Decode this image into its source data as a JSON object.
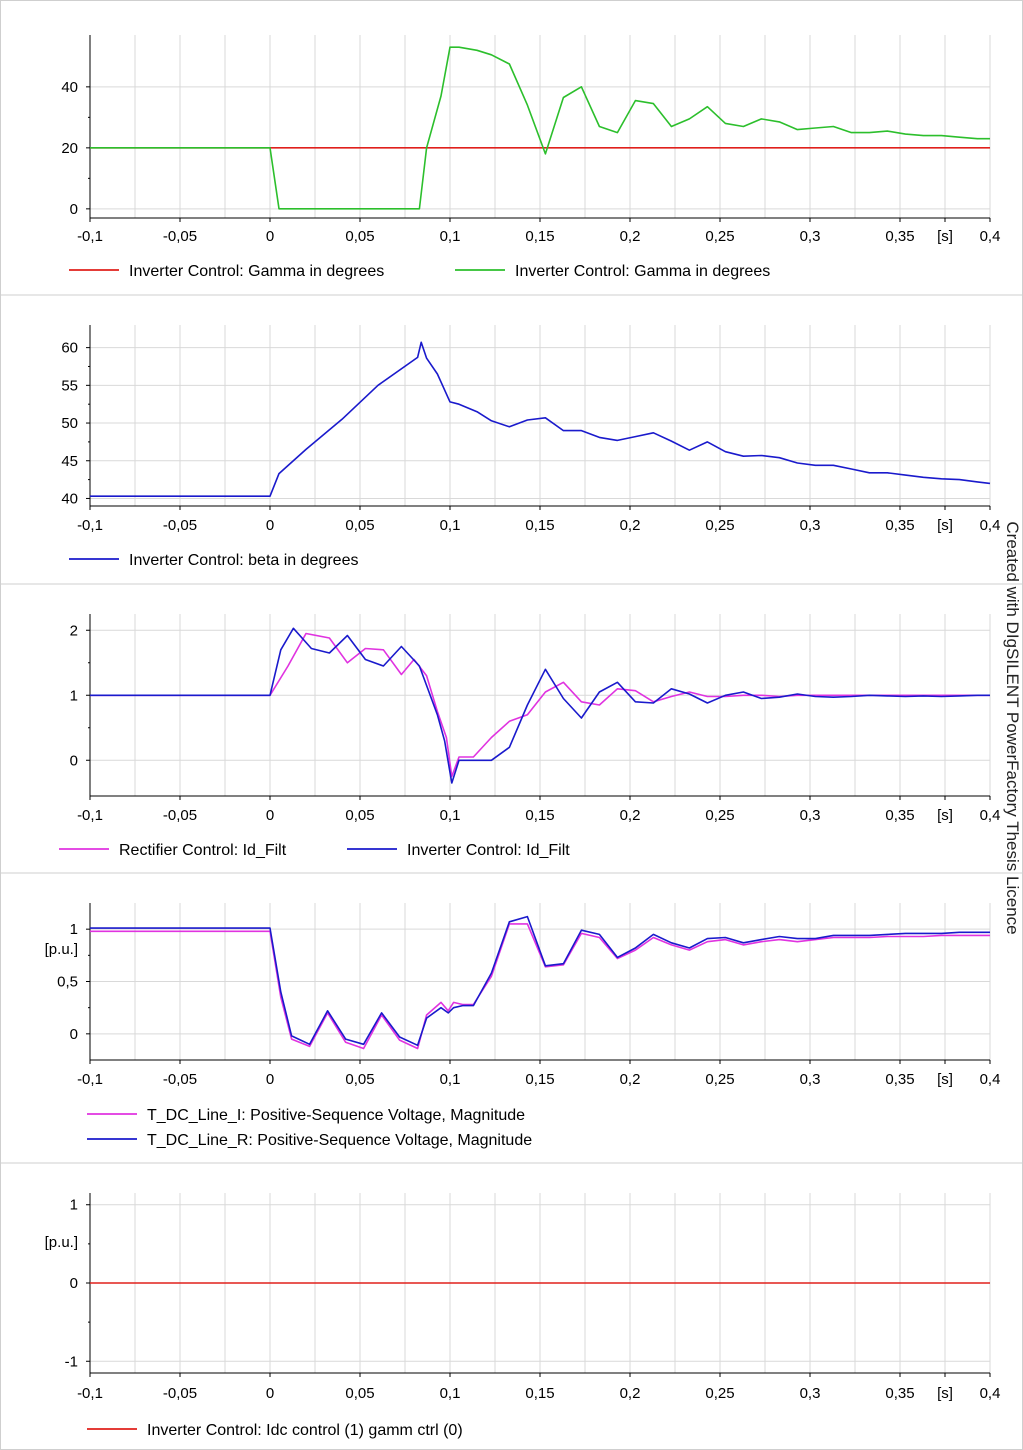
{
  "watermark": "Created with DIgSILENT PowerFactory Thesis Licence",
  "chart_data": [
    {
      "type": "line",
      "x_tick_labels": [
        "-0,1",
        "-0,05",
        "0",
        "0,05",
        "0,1",
        "0,15",
        "0,2",
        "0,25",
        "0,3",
        "0,35",
        "[s]",
        "0,4"
      ],
      "xlim": [
        -0.1,
        0.4
      ],
      "ylim": [
        -3,
        57
      ],
      "y_ticks": [
        0,
        20,
        40
      ],
      "y_tick_labels": [
        "0",
        "20",
        "40"
      ],
      "ylabel": "",
      "grid": true,
      "legend_placement": "bottom",
      "series": [
        {
          "name": "Inverter Control: Gamma in degrees",
          "color": "#e0201c",
          "x": [
            -0.1,
            0.4
          ],
          "y": [
            20,
            20
          ]
        },
        {
          "name": "Inverter Control: Gamma in degrees",
          "color": "#2cbf2c",
          "x": [
            -0.1,
            0.0,
            0.005,
            0.083,
            0.087,
            0.095,
            0.1,
            0.105,
            0.115,
            0.123,
            0.133,
            0.143,
            0.153,
            0.163,
            0.173,
            0.183,
            0.193,
            0.203,
            0.213,
            0.223,
            0.233,
            0.243,
            0.253,
            0.263,
            0.273,
            0.283,
            0.293,
            0.303,
            0.313,
            0.323,
            0.333,
            0.343,
            0.353,
            0.363,
            0.373,
            0.383,
            0.393,
            0.4
          ],
          "y": [
            20,
            20,
            0,
            0,
            20,
            37,
            53,
            53,
            52,
            50.5,
            47.5,
            34,
            18,
            36.5,
            40,
            27,
            25,
            35.5,
            34.5,
            27,
            29.5,
            33.5,
            28,
            27,
            29.5,
            28.5,
            26,
            26.5,
            27,
            25,
            25,
            25.5,
            24.5,
            24,
            24,
            23.5,
            23,
            23
          ]
        }
      ]
    },
    {
      "type": "line",
      "x_tick_labels": [
        "-0,1",
        "-0,05",
        "0",
        "0,05",
        "0,1",
        "0,15",
        "0,2",
        "0,25",
        "0,3",
        "0,35",
        "[s]",
        "0,4"
      ],
      "xlim": [
        -0.1,
        0.4
      ],
      "ylim": [
        39,
        63
      ],
      "y_ticks": [
        40,
        45,
        50,
        55,
        60
      ],
      "y_tick_labels": [
        "40",
        "45",
        "50",
        "55",
        "60"
      ],
      "ylabel": "",
      "grid": true,
      "legend_placement": "bottom",
      "series": [
        {
          "name": "Inverter Control: beta in degrees",
          "color": "#1a1acc",
          "x": [
            -0.1,
            0.0,
            0.005,
            0.02,
            0.04,
            0.06,
            0.082,
            0.084,
            0.087,
            0.093,
            0.1,
            0.105,
            0.115,
            0.123,
            0.133,
            0.143,
            0.153,
            0.163,
            0.173,
            0.183,
            0.193,
            0.203,
            0.213,
            0.223,
            0.233,
            0.243,
            0.253,
            0.263,
            0.273,
            0.283,
            0.293,
            0.303,
            0.313,
            0.323,
            0.333,
            0.343,
            0.353,
            0.363,
            0.373,
            0.383,
            0.393,
            0.4
          ],
          "y": [
            40.3,
            40.3,
            43.3,
            46.5,
            50.5,
            55,
            58.7,
            60.7,
            58.6,
            56.5,
            52.8,
            52.5,
            51.5,
            50.3,
            49.5,
            50.4,
            50.7,
            49,
            49,
            48.1,
            47.7,
            48.2,
            48.7,
            47.6,
            46.4,
            47.5,
            46.2,
            45.6,
            45.7,
            45.4,
            44.7,
            44.4,
            44.4,
            43.9,
            43.4,
            43.4,
            43.1,
            42.8,
            42.6,
            42.5,
            42.2,
            42
          ]
        }
      ]
    },
    {
      "type": "line",
      "x_tick_labels": [
        "-0,1",
        "-0,05",
        "0",
        "0,05",
        "0,1",
        "0,15",
        "0,2",
        "0,25",
        "0,3",
        "0,35",
        "[s]",
        "0,4"
      ],
      "xlim": [
        -0.1,
        0.4
      ],
      "ylim": [
        -0.55,
        2.25
      ],
      "y_ticks": [
        0,
        1,
        2
      ],
      "y_tick_labels": [
        "0",
        "1",
        "2"
      ],
      "ylabel": "",
      "grid": true,
      "legend_placement": "bottom",
      "series": [
        {
          "name": "Rectifier Control: Id_Filt",
          "color": "#e033e0",
          "x": [
            -0.1,
            0.0,
            0.01,
            0.02,
            0.033,
            0.043,
            0.053,
            0.063,
            0.073,
            0.08,
            0.087,
            0.093,
            0.098,
            0.101,
            0.105,
            0.113,
            0.123,
            0.133,
            0.143,
            0.153,
            0.163,
            0.173,
            0.183,
            0.193,
            0.203,
            0.213,
            0.223,
            0.233,
            0.243,
            0.253,
            0.263,
            0.273,
            0.283,
            0.293,
            0.303,
            0.313,
            0.323,
            0.333,
            0.343,
            0.353,
            0.363,
            0.373,
            0.383,
            0.393,
            0.4
          ],
          "y": [
            1,
            1,
            1.45,
            1.95,
            1.88,
            1.5,
            1.72,
            1.7,
            1.32,
            1.55,
            1.3,
            0.75,
            0.35,
            -0.25,
            0.05,
            0.05,
            0.35,
            0.6,
            0.7,
            1.05,
            1.2,
            0.9,
            0.85,
            1.1,
            1.07,
            0.9,
            0.98,
            1.05,
            0.98,
            0.98,
            1,
            1,
            0.98,
            1,
            1,
            1,
            1,
            1,
            1,
            1,
            1,
            1,
            1,
            1,
            1
          ]
        },
        {
          "name": "Inverter Control: Id_Filt",
          "color": "#1a1acc",
          "x": [
            -0.1,
            0.0,
            0.006,
            0.013,
            0.023,
            0.033,
            0.043,
            0.053,
            0.063,
            0.073,
            0.083,
            0.093,
            0.097,
            0.101,
            0.105,
            0.113,
            0.123,
            0.133,
            0.143,
            0.153,
            0.163,
            0.173,
            0.183,
            0.193,
            0.203,
            0.213,
            0.223,
            0.233,
            0.243,
            0.253,
            0.263,
            0.273,
            0.283,
            0.293,
            0.303,
            0.313,
            0.323,
            0.333,
            0.343,
            0.353,
            0.363,
            0.373,
            0.383,
            0.393,
            0.4
          ],
          "y": [
            1,
            1,
            1.7,
            2.03,
            1.72,
            1.65,
            1.92,
            1.55,
            1.45,
            1.75,
            1.45,
            0.7,
            0.3,
            -0.35,
            0,
            0,
            0,
            0.2,
            0.85,
            1.4,
            0.95,
            0.65,
            1.05,
            1.2,
            0.9,
            0.88,
            1.1,
            1.02,
            0.88,
            1,
            1.05,
            0.95,
            0.97,
            1.02,
            0.98,
            0.97,
            0.98,
            1,
            0.99,
            0.98,
            0.99,
            0.98,
            0.99,
            1,
            1
          ]
        }
      ]
    },
    {
      "type": "line",
      "x_tick_labels": [
        "-0,1",
        "-0,05",
        "0",
        "0,05",
        "0,1",
        "0,15",
        "0,2",
        "0,25",
        "0,3",
        "0,35",
        "[s]",
        "0,4"
      ],
      "xlim": [
        -0.1,
        0.4
      ],
      "ylim": [
        -0.25,
        1.25
      ],
      "y_ticks": [
        0,
        0.5,
        1
      ],
      "y_tick_labels": [
        "0",
        "0,5",
        "1"
      ],
      "ylabel": "[p.u.]",
      "grid": true,
      "legend_placement": "bottom",
      "series": [
        {
          "name": "T_DC_Line_I: Positive-Sequence Voltage, Magnitude",
          "color": "#e033e0",
          "x": [
            -0.1,
            0.0,
            0.006,
            0.012,
            0.022,
            0.032,
            0.042,
            0.052,
            0.062,
            0.072,
            0.082,
            0.087,
            0.095,
            0.099,
            0.102,
            0.107,
            0.113,
            0.123,
            0.133,
            0.143,
            0.153,
            0.163,
            0.173,
            0.183,
            0.193,
            0.203,
            0.213,
            0.223,
            0.233,
            0.243,
            0.253,
            0.263,
            0.273,
            0.283,
            0.293,
            0.303,
            0.313,
            0.323,
            0.333,
            0.343,
            0.353,
            0.363,
            0.373,
            0.383,
            0.393,
            0.4
          ],
          "y": [
            0.98,
            0.98,
            0.35,
            -0.05,
            -0.12,
            0.2,
            -0.08,
            -0.14,
            0.18,
            -0.06,
            -0.14,
            0.18,
            0.3,
            0.22,
            0.3,
            0.28,
            0.28,
            0.55,
            1.05,
            1.05,
            0.64,
            0.66,
            0.96,
            0.92,
            0.72,
            0.8,
            0.92,
            0.85,
            0.8,
            0.88,
            0.9,
            0.85,
            0.88,
            0.9,
            0.88,
            0.9,
            0.92,
            0.92,
            0.92,
            0.93,
            0.93,
            0.93,
            0.94,
            0.94,
            0.94,
            0.94
          ]
        },
        {
          "name": "T_DC_Line_R: Positive-Sequence Voltage, Magnitude",
          "color": "#1a1acc",
          "x": [
            -0.1,
            0.0,
            0.006,
            0.012,
            0.022,
            0.032,
            0.042,
            0.052,
            0.062,
            0.072,
            0.082,
            0.087,
            0.095,
            0.099,
            0.102,
            0.107,
            0.113,
            0.123,
            0.133,
            0.143,
            0.153,
            0.163,
            0.173,
            0.183,
            0.193,
            0.203,
            0.213,
            0.223,
            0.233,
            0.243,
            0.253,
            0.263,
            0.273,
            0.283,
            0.293,
            0.303,
            0.313,
            0.323,
            0.333,
            0.343,
            0.353,
            0.363,
            0.373,
            0.383,
            0.393,
            0.4
          ],
          "y": [
            1.01,
            1.01,
            0.4,
            -0.02,
            -0.1,
            0.22,
            -0.05,
            -0.1,
            0.2,
            -0.03,
            -0.11,
            0.15,
            0.25,
            0.2,
            0.25,
            0.27,
            0.27,
            0.58,
            1.07,
            1.12,
            0.65,
            0.67,
            0.99,
            0.95,
            0.73,
            0.82,
            0.95,
            0.87,
            0.82,
            0.91,
            0.92,
            0.87,
            0.9,
            0.93,
            0.91,
            0.91,
            0.94,
            0.94,
            0.94,
            0.95,
            0.96,
            0.96,
            0.96,
            0.97,
            0.97,
            0.97
          ]
        }
      ]
    },
    {
      "type": "line",
      "x_tick_labels": [
        "-0,1",
        "-0,05",
        "0",
        "0,05",
        "0,1",
        "0,15",
        "0,2",
        "0,25",
        "0,3",
        "0,35",
        "[s]",
        "0,4"
      ],
      "xlim": [
        -0.1,
        0.4
      ],
      "ylim": [
        -1.15,
        1.15
      ],
      "y_ticks": [
        -1,
        0,
        1
      ],
      "y_tick_labels": [
        "-1",
        "0",
        "1"
      ],
      "ylabel": "[p.u.]",
      "grid": true,
      "legend_placement": "bottom",
      "series": [
        {
          "name": "Inverter Control: Idc control (1) gamm ctrl (0)",
          "color": "#e0201c",
          "x": [
            -0.1,
            0.4
          ],
          "y": [
            0,
            0
          ]
        }
      ]
    }
  ]
}
